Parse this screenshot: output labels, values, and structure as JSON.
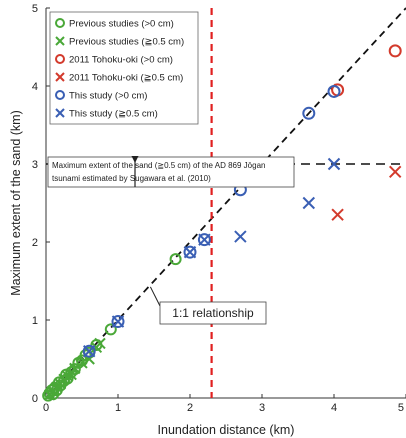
{
  "chart_data": {
    "type": "scatter",
    "title": "",
    "xlabel": "Inundation distance (km)",
    "ylabel": "Maximum extent of the sand (km)",
    "xlim": [
      0,
      5
    ],
    "ylim": [
      0,
      5
    ],
    "xticks": [
      "0",
      "1",
      "2",
      "3",
      "4",
      "5"
    ],
    "yticks": [
      "0",
      "1",
      "2",
      "3",
      "4",
      "5"
    ],
    "grid": false,
    "legend_position": "top-left",
    "series": [
      {
        "name": "Previous studies (>0 cm)",
        "marker": "circle",
        "color": "#4aa838",
        "points": [
          [
            0.03,
            0.03
          ],
          [
            0.05,
            0.06
          ],
          [
            0.08,
            0.1
          ],
          [
            0.1,
            0.05
          ],
          [
            0.12,
            0.13
          ],
          [
            0.15,
            0.1
          ],
          [
            0.18,
            0.2
          ],
          [
            0.2,
            0.16
          ],
          [
            0.25,
            0.22
          ],
          [
            0.28,
            0.3
          ],
          [
            0.3,
            0.25
          ],
          [
            0.35,
            0.33
          ],
          [
            0.4,
            0.37
          ],
          [
            0.45,
            0.45
          ],
          [
            0.5,
            0.48
          ],
          [
            0.55,
            0.55
          ],
          [
            0.6,
            0.58
          ],
          [
            0.7,
            0.68
          ],
          [
            0.9,
            0.88
          ],
          [
            1.8,
            1.78
          ]
        ]
      },
      {
        "name": "Previous studies (≧0.5 cm)",
        "marker": "x",
        "color": "#4aa838",
        "points": [
          [
            0.05,
            0.04
          ],
          [
            0.1,
            0.09
          ],
          [
            0.15,
            0.14
          ],
          [
            0.2,
            0.18
          ],
          [
            0.25,
            0.24
          ],
          [
            0.3,
            0.28
          ],
          [
            0.35,
            0.3
          ],
          [
            0.4,
            0.38
          ],
          [
            0.5,
            0.45
          ],
          [
            0.6,
            0.5
          ],
          [
            0.7,
            0.65
          ],
          [
            0.75,
            0.7
          ]
        ]
      },
      {
        "name": "2011 Tohoku-oki (>0 cm)",
        "marker": "circle",
        "color": "#d33a2c",
        "points": [
          [
            4.05,
            3.95
          ],
          [
            4.85,
            4.45
          ]
        ]
      },
      {
        "name": "2011 Tohoku-oki (≧0.5 cm)",
        "marker": "x",
        "color": "#d33a2c",
        "points": [
          [
            4.05,
            2.35
          ],
          [
            4.85,
            2.9
          ]
        ]
      },
      {
        "name": "This study (>0 cm)",
        "marker": "circle",
        "color": "#3a5fb4",
        "points": [
          [
            0.6,
            0.6
          ],
          [
            1.0,
            0.98
          ],
          [
            2.0,
            1.87
          ],
          [
            2.2,
            2.03
          ],
          [
            2.7,
            2.67
          ],
          [
            3.65,
            3.65
          ],
          [
            4.0,
            3.93
          ]
        ]
      },
      {
        "name": "This study (≧0.5 cm)",
        "marker": "x",
        "color": "#3a5fb4",
        "points": [
          [
            0.6,
            0.6
          ],
          [
            1.0,
            0.98
          ],
          [
            2.0,
            1.87
          ],
          [
            2.2,
            2.03
          ],
          [
            2.7,
            2.07
          ],
          [
            3.65,
            2.5
          ],
          [
            4.0,
            3.0
          ]
        ]
      }
    ],
    "reference_lines": [
      {
        "kind": "diagonal",
        "label": "1:1 relationship",
        "color": "#111111"
      },
      {
        "kind": "horizontal",
        "y": 3.0,
        "color": "#111111"
      },
      {
        "kind": "vertical",
        "x": 2.3,
        "color": "#e02020"
      }
    ],
    "annotations": [
      {
        "text_lines": [
          "Maximum extent of the sand (≧0.5 cm) of the AD 869 Jōgan",
          "tsunami estimated by Sugawara et al. (2010)"
        ]
      },
      {
        "text": "1:1 relationship"
      }
    ]
  }
}
